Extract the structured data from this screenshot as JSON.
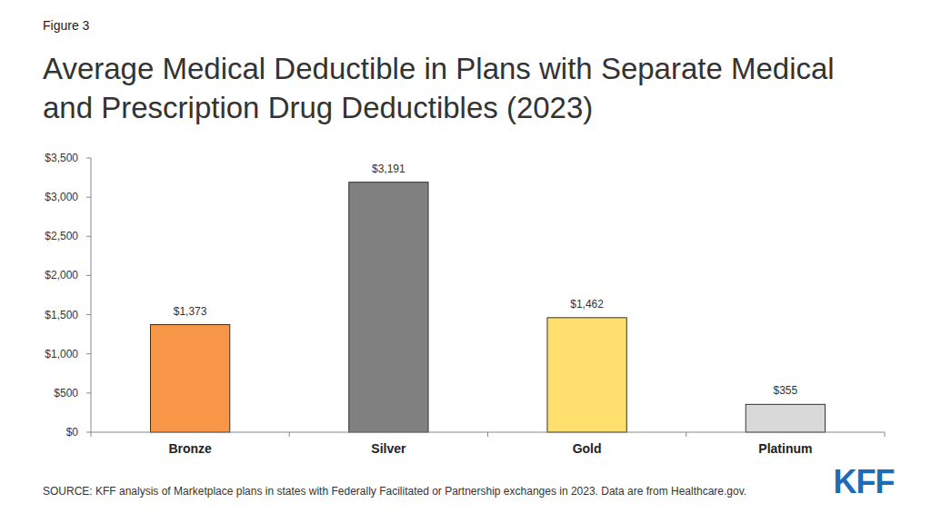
{
  "chart_data": {
    "type": "bar",
    "figure_label": "Figure 3",
    "title": "Average Medical Deductible in Plans with Separate Medical and Prescription Drug Deductibles (2023)",
    "categories": [
      "Bronze",
      "Silver",
      "Gold",
      "Platinum"
    ],
    "values": [
      1373,
      3191,
      1462,
      355
    ],
    "value_labels": [
      "$1,373",
      "$3,191",
      "$1,462",
      "$355"
    ],
    "colors": [
      "#f79646",
      "#808080",
      "#ffe06e",
      "#d9d9d9"
    ],
    "ylim": [
      0,
      3500
    ],
    "yticks": [
      {
        "value": 0,
        "label": "$0"
      },
      {
        "value": 500,
        "label": "$500"
      },
      {
        "value": 1000,
        "label": "$1,000"
      },
      {
        "value": 1500,
        "label": "$1,500"
      },
      {
        "value": 2000,
        "label": "$2,000"
      },
      {
        "value": 2500,
        "label": "$2,500"
      },
      {
        "value": 3000,
        "label": "$3,000"
      },
      {
        "value": 3500,
        "label": "$3,500"
      }
    ],
    "grid": false,
    "data_labels": true,
    "source": "SOURCE: KFF analysis of Marketplace plans in states with Federally Facilitated or Partnership exchanges in 2023. Data are from Healthcare.gov.",
    "logo": "KFF"
  }
}
